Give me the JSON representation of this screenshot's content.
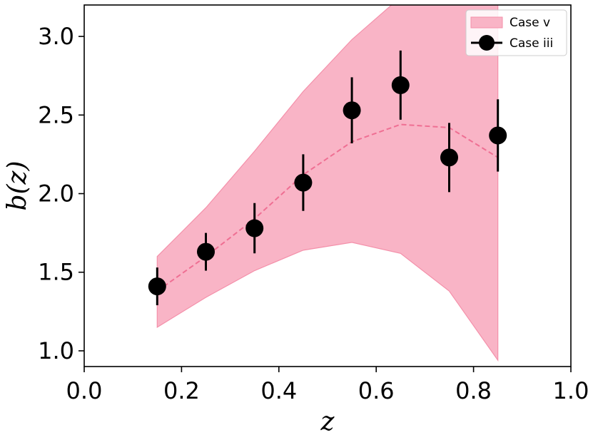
{
  "chart_data": {
    "type": "scatter",
    "xlabel": "z",
    "ylabel": "b(z)",
    "xlim": [
      0.0,
      1.0
    ],
    "ylim": [
      0.9,
      3.2
    ],
    "x_ticks": [
      "0.0",
      "0.2",
      "0.4",
      "0.6",
      "0.8",
      "1.0"
    ],
    "y_ticks": [
      "1.0",
      "1.5",
      "2.0",
      "2.5",
      "3.0"
    ],
    "grid": false,
    "legend_position": "top-right",
    "band": {
      "name": "Case v",
      "color": "#f9b4c6",
      "x": [
        0.15,
        0.25,
        0.35,
        0.45,
        0.55,
        0.65,
        0.75,
        0.85
      ],
      "upper": [
        1.6,
        1.91,
        2.27,
        2.65,
        2.98,
        3.25,
        3.25,
        3.25
      ],
      "lower": [
        1.15,
        1.34,
        1.51,
        1.64,
        1.69,
        1.62,
        1.38,
        0.94
      ],
      "median": [
        1.38,
        1.6,
        1.84,
        2.12,
        2.33,
        2.44,
        2.42,
        2.23
      ]
    },
    "series": [
      {
        "name": "Case iii",
        "color": "#000000",
        "x": [
          0.15,
          0.25,
          0.35,
          0.45,
          0.55,
          0.65,
          0.75,
          0.85
        ],
        "y": [
          1.41,
          1.63,
          1.78,
          2.07,
          2.53,
          2.69,
          2.23,
          2.37
        ],
        "yerr": [
          0.12,
          0.12,
          0.16,
          0.18,
          0.21,
          0.22,
          0.22,
          0.23
        ]
      }
    ]
  }
}
